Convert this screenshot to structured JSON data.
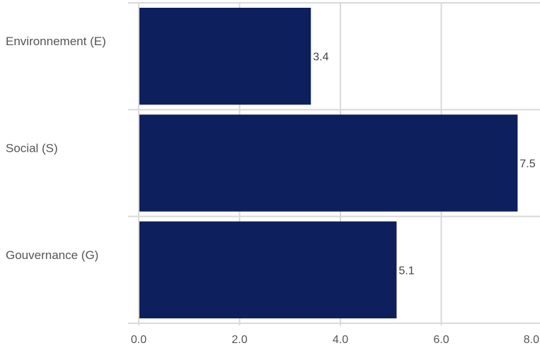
{
  "chart_data": {
    "type": "bar",
    "orientation": "horizontal",
    "categories": [
      "Environnement (E)",
      "Social (S)",
      "Gouvernance (G)"
    ],
    "values": [
      3.4,
      7.5,
      5.1
    ],
    "data_labels": [
      "3.4",
      "7.5",
      "5.1"
    ],
    "xlim": [
      0,
      8
    ],
    "x_ticks": [
      0,
      2,
      4,
      6,
      8
    ],
    "x_tick_labels": [
      "0.0",
      "2.0",
      "4.0",
      "6.0",
      "8.0"
    ],
    "grid": true,
    "bar_color": "#0d1f5c",
    "grid_color": "#d9d9d9",
    "title": "",
    "xlabel": "",
    "ylabel": ""
  }
}
